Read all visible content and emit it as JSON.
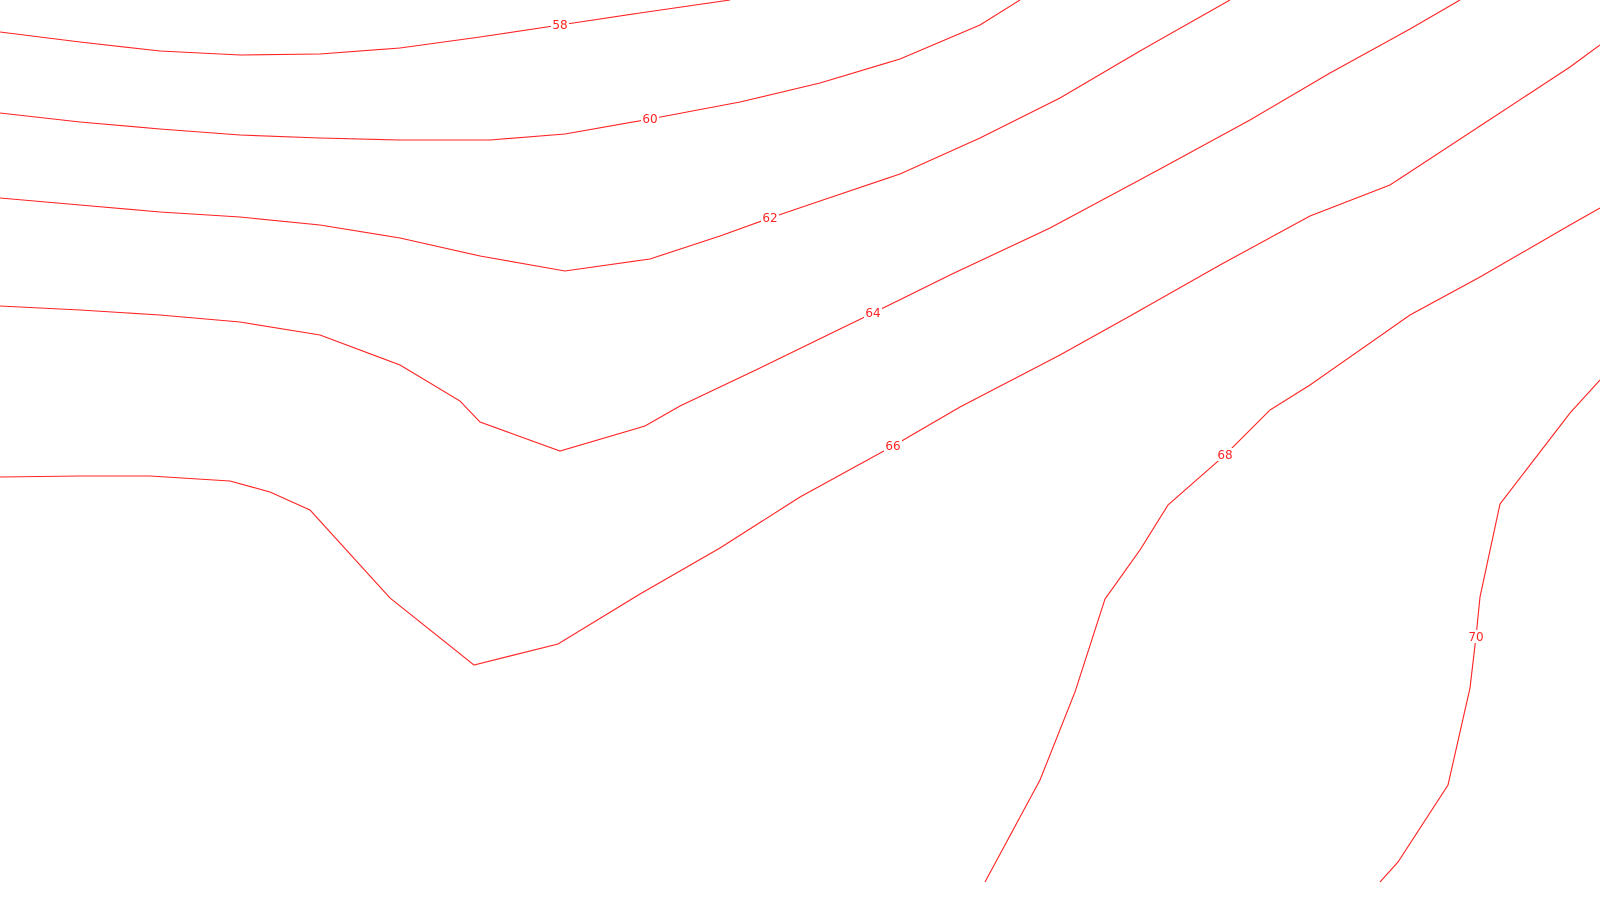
{
  "map": {
    "contour_color": "#ff2222",
    "background_color": "#ffffff",
    "contours": [
      {
        "value": 58,
        "label": "58"
      },
      {
        "value": 60,
        "label": "60"
      },
      {
        "value": 62,
        "label": "62"
      },
      {
        "value": 64,
        "label": "64"
      },
      {
        "value": 66,
        "label": "66"
      },
      {
        "value": 68,
        "label": "68"
      },
      {
        "value": 70,
        "label": "70"
      }
    ]
  }
}
